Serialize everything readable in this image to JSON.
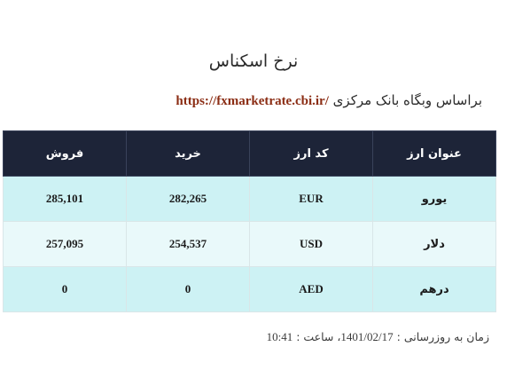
{
  "title": "نرخ اسکناس",
  "source": {
    "prefix": "براساس وبگاه بانک مرکزی",
    "url": "https://fxmarketrate.cbi.ir/"
  },
  "table": {
    "headers": {
      "name": "عنوان ارز",
      "code": "کد ارز",
      "buy": "خرید",
      "sell": "فروش"
    },
    "rows": [
      {
        "name": "یورو",
        "code": "EUR",
        "buy": "282,265",
        "sell": "285,101"
      },
      {
        "name": "دلار",
        "code": "USD",
        "buy": "254,537",
        "sell": "257,095"
      },
      {
        "name": "درهم",
        "code": "AED",
        "buy": "0",
        "sell": "0"
      }
    ]
  },
  "update": {
    "label": "زمان به روزرسانی :",
    "date": "1401/02/17",
    "time_label": "، ساعت :",
    "time": "10:41"
  },
  "colors": {
    "header_bg": "#1d2438",
    "row_odd": "#cdf2f4",
    "row_even": "#e9f9fa",
    "link": "#8b2d14"
  }
}
